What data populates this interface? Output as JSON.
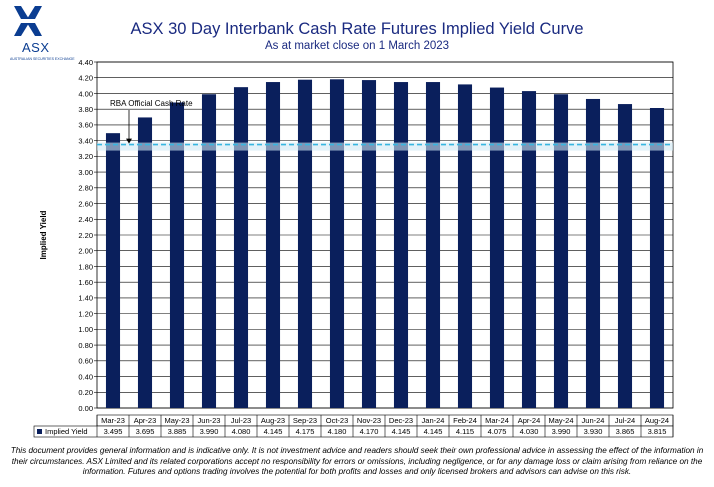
{
  "logo": {
    "name": "ASX",
    "tagline": "AUSTRALIAN SECURITIES EXCHANGE",
    "icon": "asx-x-logo-icon"
  },
  "title": "ASX 30 Day Interbank Cash Rate Futures Implied Yield Curve",
  "subtitle": "As at market close on 1 March 2023",
  "chart_data": {
    "type": "bar",
    "ylabel": "Implied Yield",
    "ylim": [
      0,
      4.4
    ],
    "yticks": [
      "0.00",
      "0.20",
      "0.40",
      "0.60",
      "0.80",
      "1.00",
      "1.20",
      "1.40",
      "1.60",
      "1.80",
      "2.00",
      "2.20",
      "2.40",
      "2.60",
      "2.80",
      "3.00",
      "3.20",
      "3.40",
      "3.60",
      "3.80",
      "4.00",
      "4.20",
      "4.40"
    ],
    "grid": true,
    "categories": [
      "Mar-23",
      "Apr-23",
      "May-23",
      "Jun-23",
      "Jul-23",
      "Aug-23",
      "Sep-23",
      "Oct-23",
      "Nov-23",
      "Dec-23",
      "Jan-24",
      "Feb-24",
      "Mar-24",
      "Apr-24",
      "May-24",
      "Jun-24",
      "Jul-24",
      "Aug-24"
    ],
    "series": [
      {
        "name": "Implied Yield",
        "values": [
          3.495,
          3.695,
          3.885,
          3.99,
          4.08,
          4.145,
          4.175,
          4.18,
          4.17,
          4.145,
          4.145,
          4.115,
          4.075,
          4.03,
          3.99,
          3.93,
          3.865,
          3.815
        ]
      }
    ],
    "value_labels": [
      "3.495",
      "3.695",
      "3.885",
      "3.990",
      "4.080",
      "4.145",
      "4.175",
      "4.180",
      "4.170",
      "4.145",
      "4.145",
      "4.115",
      "4.075",
      "4.030",
      "3.990",
      "3.930",
      "3.865",
      "3.815"
    ],
    "reference_line": {
      "label": "RBA Official Cash Rate",
      "value": 3.35
    },
    "colors": {
      "bar": "#0a1f5c",
      "reference": "#38b6e0",
      "title": "#1a2a80"
    }
  },
  "disclaimer": "This document provides general information and is indicative only. It is not investment advice and readers should seek their own professional advice in assessing the effect of the information in their circumstances. ASX Limited and its related corporations accept no responsibility for errors or omissions, including negligence, or for any damage loss or claim arising from reliance on the information. Futures and options trading involves the potential for both profits and losses and only licensed brokers and advisors can advise on this risk."
}
